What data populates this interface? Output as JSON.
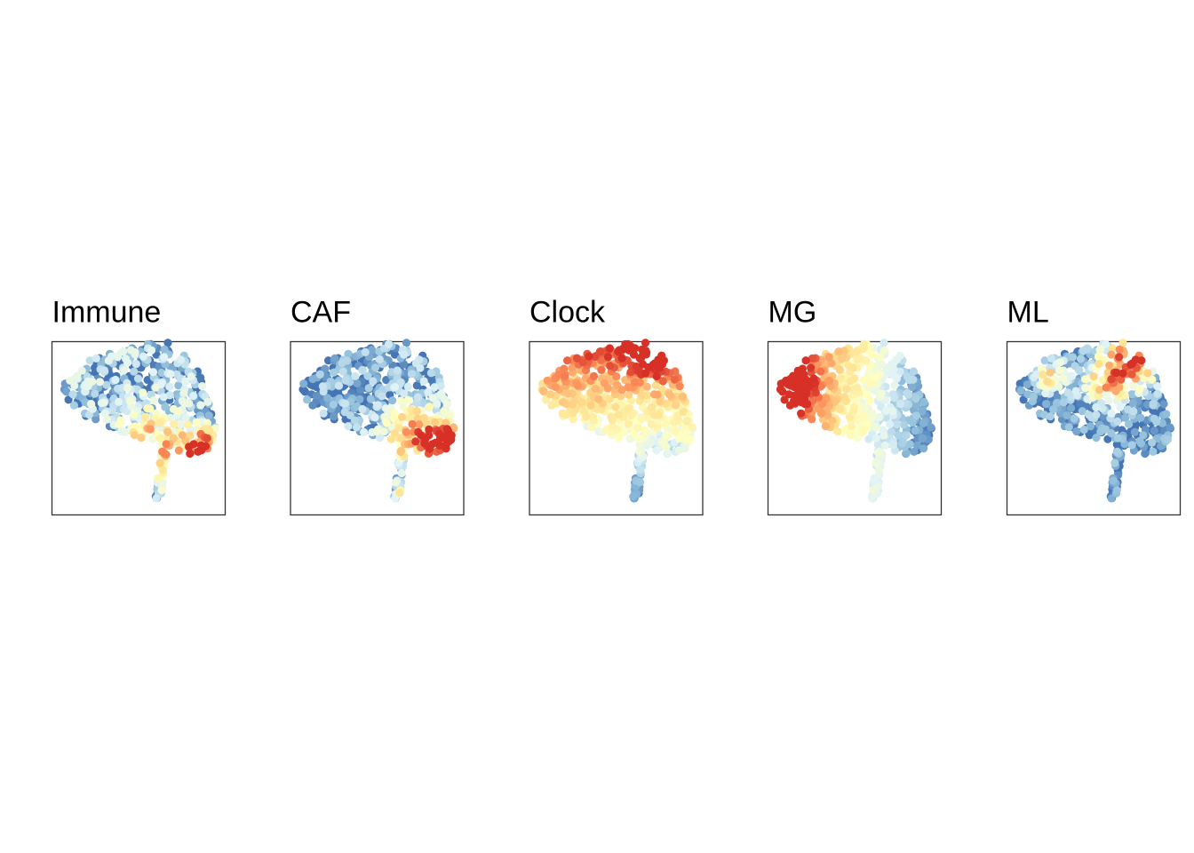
{
  "chart_data": {
    "type": "scatter",
    "description_free": true,
    "color_scale": [
      "#4575b4",
      "#91bfdb",
      "#e0f3f8",
      "#ffffbf",
      "#fee090",
      "#fc8d59",
      "#d73027"
    ],
    "panels": [
      {
        "title": "Immune",
        "hotspots": [
          {
            "x": 0.8,
            "y": -0.35,
            "spread": 0.16,
            "w": 1.0
          },
          {
            "x": 0.18,
            "y": -0.3,
            "spread": 0.28,
            "w": 0.55
          },
          {
            "x": 0.48,
            "y": -0.72,
            "spread": 0.14,
            "w": 0.6
          }
        ],
        "base": 0.12,
        "noise": 0.55
      },
      {
        "title": "CAF",
        "hotspots": [
          {
            "x": 0.92,
            "y": -0.28,
            "spread": 0.2,
            "w": 1.0
          },
          {
            "x": 0.48,
            "y": -0.18,
            "spread": 0.28,
            "w": 0.65
          },
          {
            "x": 0.4,
            "y": -0.95,
            "spread": 0.12,
            "w": 0.7
          }
        ],
        "base": 0.08,
        "noise": 0.45
      },
      {
        "title": "Clock",
        "gradient": {
          "dx": 0.0,
          "dy": 1.0
        },
        "hotspots": [
          {
            "x": 0.55,
            "y": 0.95,
            "spread": 0.22,
            "w": 0.8
          }
        ],
        "base": 0.0,
        "noise": 0.22
      },
      {
        "title": "MG",
        "gradient": {
          "dx": -1.0,
          "dy": 0.15
        },
        "hotspots": [
          {
            "x": -0.92,
            "y": 0.45,
            "spread": 0.22,
            "w": 0.9
          }
        ],
        "base": 0.0,
        "noise": 0.18
      },
      {
        "title": "ML",
        "hotspots": [
          {
            "x": 0.55,
            "y": 0.8,
            "spread": 0.22,
            "w": 0.9
          },
          {
            "x": 0.2,
            "y": 0.5,
            "spread": 0.22,
            "w": 0.7
          },
          {
            "x": -0.55,
            "y": 0.55,
            "spread": 0.14,
            "w": 0.55
          }
        ],
        "base": 0.02,
        "noise": 0.4
      }
    ]
  }
}
